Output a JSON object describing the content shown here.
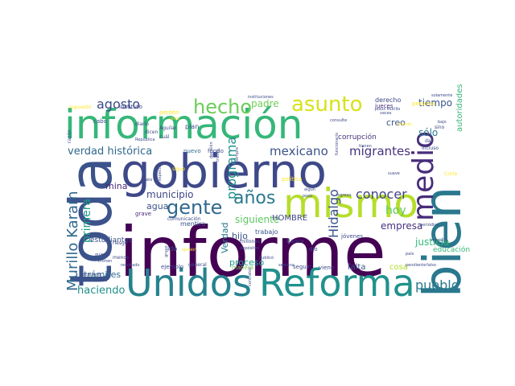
{
  "wordcloud": {
    "palette": [
      "#440154",
      "#3b528b",
      "#21918c",
      "#5ec962",
      "#fde725"
    ],
    "words": [
      {
        "text": "informe",
        "color": "#440154"
      },
      {
        "text": "gobierno",
        "color": "#3e4989"
      },
      {
        "text": "información",
        "color": "#35b779"
      },
      {
        "text": "Reforma",
        "color": "#21918c"
      },
      {
        "text": "Unidos",
        "color": "#26828e"
      },
      {
        "text": "mismo",
        "color": "#b5de2b"
      },
      {
        "text": "bien",
        "color": "#2a788e"
      },
      {
        "text": "toda",
        "color": "#3b528b"
      },
      {
        "text": "asunto",
        "color": "#d8e219"
      },
      {
        "text": "hecho",
        "color": "#6ccd5a"
      },
      {
        "text": "gente",
        "color": "#31688e"
      },
      {
        "text": "medio",
        "color": "#472c7a"
      },
      {
        "text": "años",
        "color": "#2a788e"
      },
      {
        "text": "agosto",
        "color": "#3e4a89"
      },
      {
        "text": "verdad histórica",
        "color": "#31688e"
      },
      {
        "text": "Murillo Karam",
        "color": "#31688e"
      },
      {
        "text": "mexicano",
        "color": "#3b528b"
      },
      {
        "text": "migrantes",
        "color": "#46337e"
      },
      {
        "text": "programa",
        "color": "#21918c"
      },
      {
        "text": "conocer",
        "color": "#414487"
      },
      {
        "text": "pueblo",
        "color": "#2a788e"
      },
      {
        "text": "Hidalgo",
        "color": "#3b528b"
      },
      {
        "text": "municipio",
        "color": "#3e4989"
      },
      {
        "text": "primera",
        "color": "#1f9e89"
      },
      {
        "text": "haciendo",
        "color": "#21918c"
      },
      {
        "text": "padre",
        "color": "#6ece58"
      },
      {
        "text": "tiempo",
        "color": "#3b528b"
      },
      {
        "text": "sólo",
        "color": "#2a788e"
      },
      {
        "text": "hoy",
        "color": "#5ec962"
      },
      {
        "text": "empresa",
        "color": "#46337e"
      },
      {
        "text": "justicia",
        "color": "#35b779"
      },
      {
        "text": "siguiente",
        "color": "#5ec962"
      },
      {
        "text": "trámites",
        "color": "#31688e"
      },
      {
        "text": "estudiantes",
        "color": "#3b528b"
      },
      {
        "text": "autoridades",
        "color": "#35b779"
      },
      {
        "text": "Verdad",
        "color": "#2a788e"
      },
      {
        "text": "HOMBRE",
        "color": "#414487"
      },
      {
        "text": "proceso",
        "color": "#1f9e89"
      },
      {
        "text": "hijo",
        "color": "#3b528b"
      },
      {
        "text": "mina",
        "color": "#482878"
      },
      {
        "text": "agua",
        "color": "#3b528b"
      },
      {
        "text": "creo",
        "color": "#3b528b"
      },
      {
        "text": "falta",
        "color": "#3b528b"
      },
      {
        "text": "cosa",
        "color": "#b5de2b"
      },
      {
        "text": "mentira",
        "color": "#3b528b"
      },
      {
        "text": "manera",
        "color": "#7ad151"
      },
      {
        "text": "trabajo",
        "color": "#3b528b"
      },
      {
        "text": "fondo",
        "color": "#3e4989"
      },
      {
        "text": "nuevo",
        "color": "#31688e"
      },
      {
        "text": "corrupción",
        "color": "#46337e"
      },
      {
        "text": "derecho",
        "color": "#3e4989"
      },
      {
        "text": "jueces",
        "color": "#472c7a"
      },
      {
        "text": "plan",
        "color": "#3b528b"
      },
      {
        "text": "educación",
        "color": "#35b779"
      },
      {
        "text": "Banco",
        "color": "#414487"
      },
      {
        "text": "jóvenes",
        "color": "#3e4989"
      },
      {
        "text": "viene",
        "color": "#3e4989"
      },
      {
        "text": "dio",
        "color": "#3b528b"
      },
      {
        "text": "ido",
        "color": "#3b528b"
      },
      {
        "text": "grave",
        "color": "#482878"
      },
      {
        "text": "ejemplo",
        "color": "#3e4989"
      },
      {
        "text": "general",
        "color": "#3e4989"
      },
      {
        "text": "semana",
        "color": "#3e4989"
      },
      {
        "text": "seguir",
        "color": "#3e4989"
      },
      {
        "text": "cabo",
        "color": "#3e4989"
      },
      {
        "text": "instituto",
        "color": "#3e4989"
      },
      {
        "text": "perdón",
        "color": "#fde725"
      },
      {
        "text": "supuesto",
        "color": "#fde725"
      },
      {
        "text": "Aguilar",
        "color": "#3e4989"
      },
      {
        "text": "diario",
        "color": "#3e4989"
      },
      {
        "text": "dicen",
        "color": "#3e4989"
      },
      {
        "text": "cinco",
        "color": "#fde725"
      },
      {
        "text": "menos",
        "color": "#3e4989"
      },
      {
        "text": "riesgo",
        "color": "#3e4989"
      },
      {
        "text": "crimen",
        "color": "#3e4989"
      },
      {
        "text": "quieren",
        "color": "#3e4989"
      },
      {
        "text": "millones",
        "color": "#3e4989"
      },
      {
        "text": "depósitos",
        "color": "#3e4989"
      },
      {
        "text": "comunicación",
        "color": "#3e4989"
      },
      {
        "text": "solamente",
        "color": "#3e4989"
      },
      {
        "text": "Jesús Murillo",
        "color": "#3e4989"
      },
      {
        "text": "ingreso",
        "color": "#3e4989"
      },
      {
        "text": "suave",
        "color": "#3e4989"
      },
      {
        "text": "dar",
        "color": "#3e4989"
      },
      {
        "text": "sino",
        "color": "#3e4989"
      },
      {
        "text": "incluso",
        "color": "#3e4989"
      },
      {
        "text": "país",
        "color": "#3e4989"
      },
      {
        "text": "falso",
        "color": "#3e4989"
      },
      {
        "text": "ministra",
        "color": "#3e4989"
      },
      {
        "text": "periódico",
        "color": "#3e4989"
      },
      {
        "text": "Corte",
        "color": "#fde725"
      },
      {
        "text": "política",
        "color": "#fde725"
      },
      {
        "text": "persona",
        "color": "#fde725"
      },
      {
        "text": "instituciones",
        "color": "#3e4989"
      },
      {
        "text": "razón",
        "color": "#3e4989"
      },
      {
        "text": "nunca",
        "color": "#3e4989"
      },
      {
        "text": "publicó",
        "color": "#3e4989"
      },
      {
        "text": "mundo",
        "color": "#fde725"
      },
      {
        "text": "secretario",
        "color": "#3e4989"
      },
      {
        "text": "contratos",
        "color": "#3e4989"
      },
      {
        "text": "pendiente",
        "color": "#3e4989"
      },
      {
        "text": "bajo",
        "color": "#3e4989"
      },
      {
        "text": "resultado",
        "color": "#3e4989"
      },
      {
        "text": "consulte",
        "color": "#3e4989"
      },
      {
        "text": "tienen",
        "color": "#3e4989"
      },
      {
        "text": "veces",
        "color": "#3e4989"
      },
      {
        "text": "siempre",
        "color": "#3e4989"
      },
      {
        "text": "través",
        "color": "#3e4989"
      },
      {
        "text": "decisión",
        "color": "#3e4989"
      },
      {
        "text": "algún",
        "color": "#3e4989"
      },
      {
        "text": "pozo",
        "color": "#3e4989"
      },
      {
        "text": "opinión",
        "color": "#fde725"
      },
      {
        "text": "grupo",
        "color": "#3e4989"
      },
      {
        "text": "dato",
        "color": "#3e4989"
      },
      {
        "text": "sigue",
        "color": "#fde725"
      },
      {
        "text": "respecto",
        "color": "#3e4989"
      },
      {
        "text": "República",
        "color": "#3e4989"
      },
      {
        "text": "cuál",
        "color": "#3e4989"
      },
      {
        "text": "funcionario",
        "color": "#3e4989"
      }
    ]
  }
}
